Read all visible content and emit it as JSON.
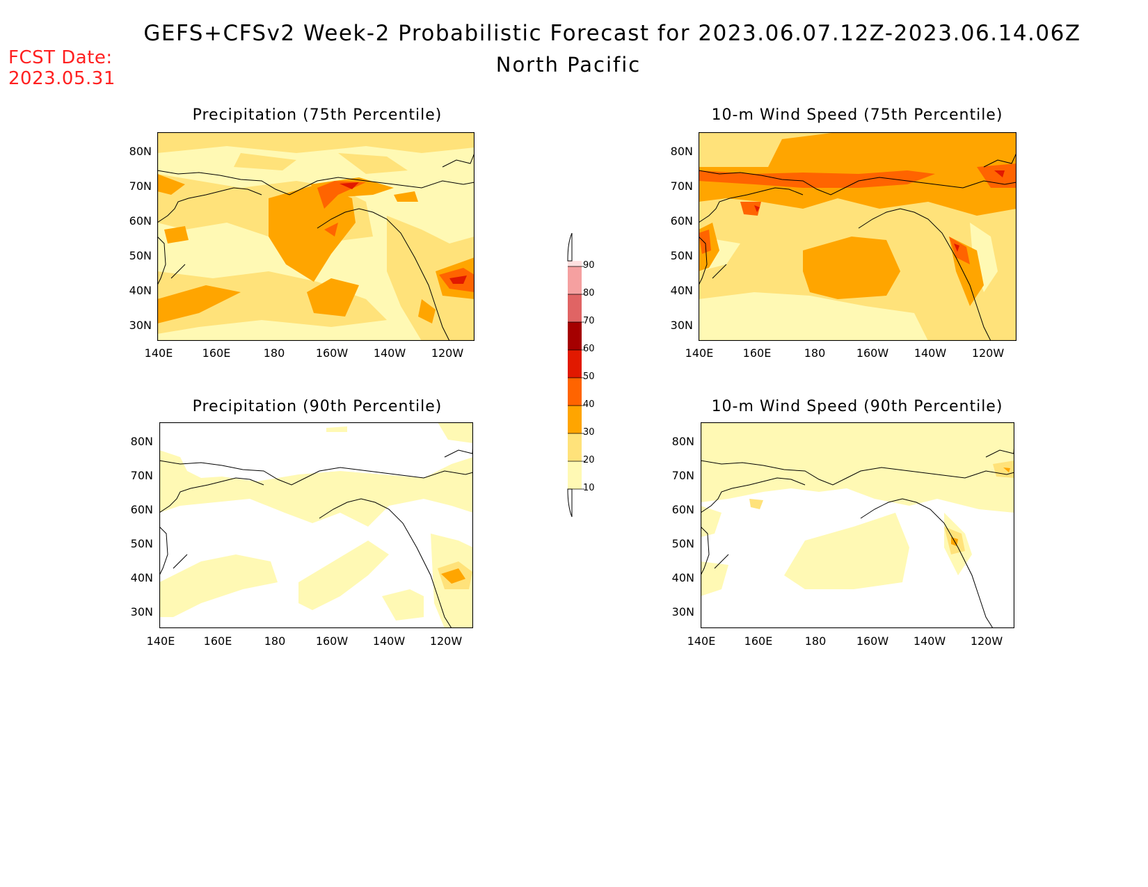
{
  "header": {
    "title": "GEFS+CFSv2 Week-2 Probabilistic Forecast for 2023.06.07.12Z-2023.06.14.06Z",
    "region": "North Pacific",
    "fcst_label": "FCST Date:",
    "fcst_date": "2023.05.31"
  },
  "axes": {
    "lat_labels": [
      "80N",
      "70N",
      "60N",
      "50N",
      "40N",
      "30N"
    ],
    "lon_labels": [
      "140E",
      "160E",
      "180",
      "160W",
      "140W",
      "120W"
    ]
  },
  "colorbar": {
    "levels": [
      10,
      20,
      30,
      40,
      50,
      60,
      70,
      80,
      90
    ],
    "labels": [
      "10",
      "20",
      "30",
      "40",
      "50",
      "60",
      "70",
      "80",
      "90"
    ],
    "colors": [
      "#fff9b4",
      "#ffe27a",
      "#ffa500",
      "#ff6400",
      "#e11900",
      "#a50000",
      "#e06464",
      "#f5a0a0",
      "#ffe0e0"
    ]
  },
  "panels": [
    {
      "id": "precip-75",
      "title": "Precipitation (75th Percentile)"
    },
    {
      "id": "wind-75",
      "title": "10-m Wind Speed (75th Percentile)"
    },
    {
      "id": "precip-90",
      "title": "Precipitation (90th Percentile)"
    },
    {
      "id": "wind-90",
      "title": "10-m Wind Speed (90th Percentile)"
    }
  ]
}
